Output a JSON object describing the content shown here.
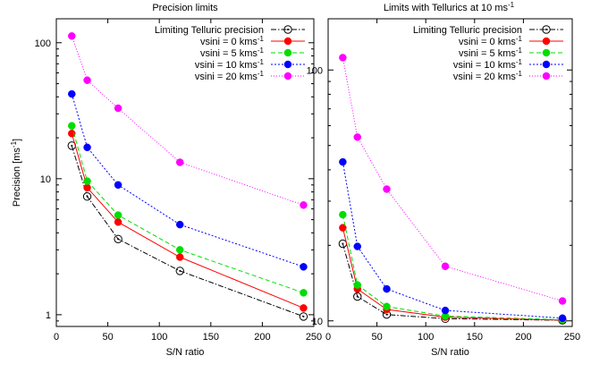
{
  "chart_data": [
    {
      "type": "line",
      "title": "Precision limits",
      "xlabel": "S/N ratio",
      "ylabel": "Precision [ms-1]",
      "ylabel_main": "Precision [ms",
      "ylabel_sup": "-1",
      "ylabel_close": "]",
      "xlim": [
        0,
        250
      ],
      "ylim": [
        0.82,
        150
      ],
      "yscale": "log",
      "xticks": [
        0,
        50,
        100,
        150,
        200,
        250
      ],
      "xtick_labels": [
        "0",
        "50",
        "100",
        "150",
        "200",
        "250"
      ],
      "yticks": [
        1,
        10,
        100
      ],
      "ytick_labels": [
        "1",
        "10",
        "100"
      ],
      "legend_position": "top-right",
      "x": [
        15,
        30,
        60,
        120,
        240
      ],
      "series": [
        {
          "name": "Limiting Telluric precision",
          "name_main": "Limiting Telluric precision",
          "name_sup": "",
          "values": [
            17.5,
            7.4,
            3.6,
            2.1,
            0.97
          ],
          "color": "#000000",
          "dash": "6,2,1.5,2",
          "marker": "open-circle"
        },
        {
          "name": "vsini = 0 kms-1",
          "name_main": "vsini = 0 kms",
          "name_sup": "-1",
          "values": [
            21.5,
            8.6,
            4.8,
            2.65,
            1.12
          ],
          "color": "#ff0000",
          "dash": "",
          "marker": "filled-circle"
        },
        {
          "name": "vsini = 5 kms-1",
          "name_main": "vsini = 5 kms",
          "name_sup": "-1",
          "values": [
            24.5,
            9.6,
            5.4,
            3.0,
            1.45
          ],
          "color": "#00dd00",
          "dash": "5,3",
          "marker": "filled-circle"
        },
        {
          "name": "vsini = 10 kms-1",
          "name_main": "vsini = 10 kms",
          "name_sup": "-1",
          "values": [
            42,
            17,
            9.0,
            4.6,
            2.25
          ],
          "color": "#0000ff",
          "dash": "2,2",
          "marker": "filled-circle"
        },
        {
          "name": "vsini = 20 kms-1",
          "name_main": "vsini = 20 kms",
          "name_sup": "-1",
          "values": [
            112,
            53,
            33,
            13.2,
            6.4
          ],
          "color": "#ff00ff",
          "dash": "1,2",
          "marker": "filled-circle"
        }
      ]
    },
    {
      "type": "line",
      "title": "Limits with Tellurics at 10 ms-1",
      "title_main": "Limits with Tellurics at 10 ms",
      "title_sup": "-1",
      "xlabel": "S/N ratio",
      "ylabel": "",
      "xlim": [
        0,
        250
      ],
      "ylim": [
        9.5,
        160
      ],
      "yscale": "log",
      "xticks": [
        0,
        50,
        100,
        150,
        200,
        250
      ],
      "xtick_labels": [
        "0",
        "50",
        "100",
        "150",
        "200",
        "250"
      ],
      "yticks": [
        10,
        100
      ],
      "ytick_labels": [
        "10",
        "100"
      ],
      "legend_position": "top-right",
      "x": [
        15,
        30,
        60,
        120,
        240
      ],
      "series": [
        {
          "name": "Limiting Telluric precision",
          "name_main": "Limiting Telluric precision",
          "name_sup": "",
          "values": [
            20.3,
            12.5,
            10.6,
            10.2,
            10.05
          ],
          "color": "#000000",
          "dash": "6,2,1.5,2",
          "marker": "open-circle"
        },
        {
          "name": "vsini = 0 kms-1",
          "name_main": "vsini = 0 kms",
          "name_sup": "-1",
          "values": [
            23.5,
            13.4,
            11.1,
            10.35,
            10.06
          ],
          "color": "#ff0000",
          "dash": "",
          "marker": "filled-circle"
        },
        {
          "name": "vsini = 5 kms-1",
          "name_main": "vsini = 5 kms",
          "name_sup": "-1",
          "values": [
            26.5,
            13.9,
            11.4,
            10.45,
            10.1
          ],
          "color": "#00dd00",
          "dash": "5,3",
          "marker": "filled-circle"
        },
        {
          "name": "vsini = 10 kms-1",
          "name_main": "vsini = 10 kms",
          "name_sup": "-1",
          "values": [
            43,
            19.8,
            13.4,
            11.0,
            10.25
          ],
          "color": "#0000ff",
          "dash": "2,2",
          "marker": "filled-circle"
        },
        {
          "name": "vsini = 20 kms-1",
          "name_main": "vsini = 20 kms",
          "name_sup": "-1",
          "values": [
            112,
            54,
            33.5,
            16.5,
            12
          ],
          "color": "#ff00ff",
          "dash": "1,2",
          "marker": "filled-circle"
        }
      ]
    }
  ]
}
